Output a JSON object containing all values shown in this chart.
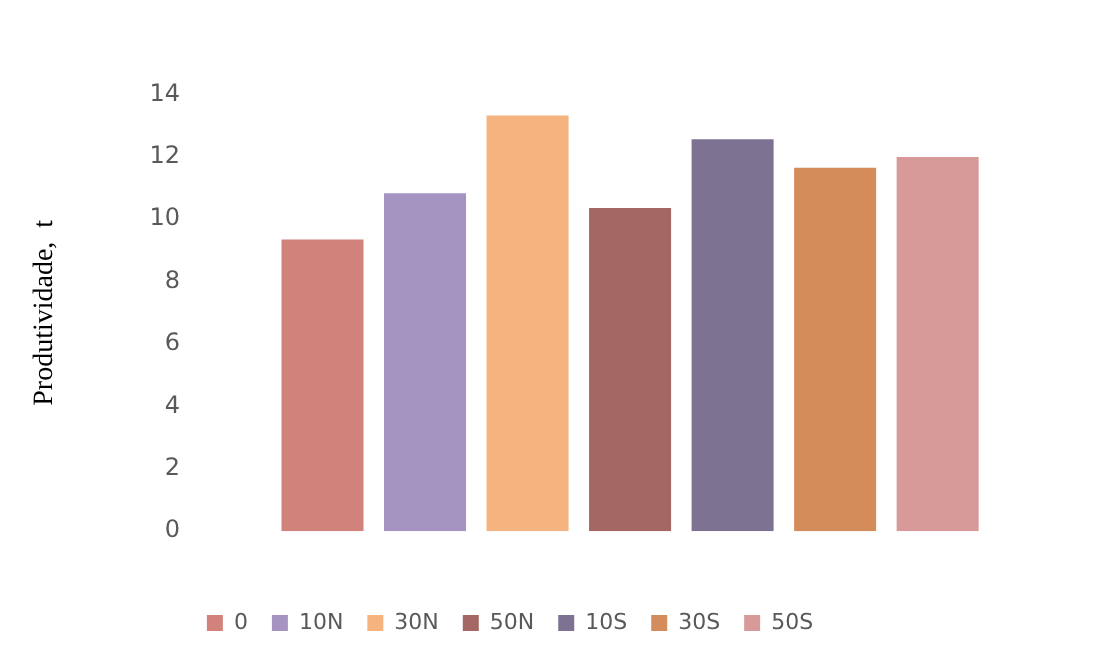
{
  "chart_data": {
    "type": "bar",
    "ylabel": "Produtividade,  t",
    "categories": [
      null
    ],
    "series": [
      {
        "name": "0",
        "color": "#d0827b",
        "values": [
          9.35
        ]
      },
      {
        "name": "10N",
        "color": "#a593c2",
        "values": [
          10.83
        ]
      },
      {
        "name": "30N",
        "color": "#f5b47f",
        "values": [
          13.32
        ]
      },
      {
        "name": "50N",
        "color": "#a46763",
        "values": [
          10.36
        ]
      },
      {
        "name": "10S",
        "color": "#7e7293",
        "values": [
          12.56
        ]
      },
      {
        "name": "30S",
        "color": "#d48c5b",
        "values": [
          11.65
        ]
      },
      {
        "name": "50S",
        "color": "#d89a99",
        "values": [
          11.99
        ]
      }
    ],
    "ylim": [
      0,
      14
    ],
    "yticks": [
      0,
      2,
      4,
      6,
      8,
      10,
      12,
      14
    ],
    "grid": false,
    "legend": "bottom"
  }
}
